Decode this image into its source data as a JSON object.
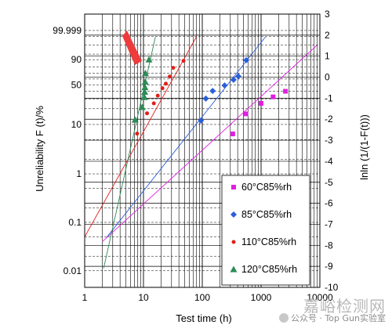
{
  "chart_data": {
    "type": "scatter",
    "title": "",
    "xlabel": "Test time (h)",
    "ylabel": "Unreliability F (t)/%",
    "y2label": "lnln (1/(1-F(t)))",
    "x_scale": "log",
    "xlim": [
      1,
      10000
    ],
    "y_scale": "weibull",
    "ylim_percent": [
      0.0063,
      99.99
    ],
    "y2lim": [
      -10,
      3
    ],
    "grid": true,
    "x_ticks": [
      "1",
      "10",
      "100",
      "1000",
      "10000"
    ],
    "y_ticks": [
      "0.01",
      "0.1",
      "1",
      "10",
      "50",
      "90",
      "99.999"
    ],
    "y2_ticks": [
      "3",
      "2",
      "1",
      "0",
      "-1",
      "-2",
      "-3",
      "-4",
      "-5",
      "-6",
      "-7",
      "-8",
      "-9",
      "-10"
    ],
    "legend_position": "bottom-right",
    "series": [
      {
        "name": "60°C85%rh",
        "color": "#e020e0",
        "marker": "square",
        "x": [
          330,
          550,
          1000,
          1600,
          2600
        ],
        "y": [
          6.5,
          16,
          25,
          32.4,
          40
        ],
        "fit_line": [
          [
            2,
            0.04
          ],
          [
            9000,
            99
          ]
        ]
      },
      {
        "name": "85°C85%rh",
        "color": "#2a5fdc",
        "marker": "diamond",
        "x": [
          95,
          115,
          150,
          240,
          340,
          410,
          560
        ],
        "y": [
          11.9,
          30.3,
          40.5,
          49.1,
          58.6,
          64.8,
          89.4
        ],
        "fit_line": [
          [
            2.4,
            0.05
          ],
          [
            1200,
            99.9
          ]
        ]
      },
      {
        "name": "110°C85%rh",
        "color": "#e0201a",
        "marker": "circle",
        "x": [
          7.8,
          11.5,
          15,
          17.5,
          21,
          24,
          28,
          32,
          48
        ],
        "y": [
          6.6,
          16.4,
          25,
          34,
          44.6,
          52,
          64.3,
          79,
          88.6
        ],
        "fit_line": [
          [
            1,
            0.05
          ],
          [
            80,
            99.9
          ]
        ]
      },
      {
        "name": "120°C85%rh",
        "color": "#2e8b57",
        "marker": "triangle",
        "x": [
          7.2,
          9.5,
          10.4,
          10.5,
          10.6,
          10.7,
          10.8,
          12.4
        ],
        "y": [
          12.3,
          21.3,
          32,
          39,
          46,
          55,
          70,
          90
        ],
        "fit_line": [
          [
            2.1,
            0.0112
          ],
          [
            16,
            99.9
          ]
        ]
      }
    ]
  },
  "watermark": {
    "big": "嘉峪检测网",
    "small": "公众号 · Top Gun实验室"
  }
}
